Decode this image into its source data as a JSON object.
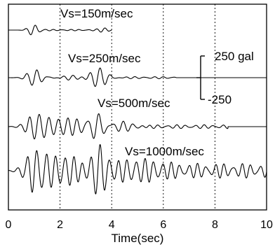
{
  "chart_data": {
    "type": "line",
    "title": "",
    "xlabel": "Time(sec)",
    "ylabel": "",
    "xlim": [
      0,
      10
    ],
    "x_ticks": [
      "0",
      "2",
      "4",
      "6",
      "8",
      "10"
    ],
    "grid": "vertical dashed lines at 2, 4, 6, 8 sec",
    "scale_bar": {
      "top_label": "250 gal",
      "bottom_label": "-250",
      "value_gal": 250
    },
    "series": [
      {
        "name": "Vs=150m/sec",
        "duration": 4.0,
        "bursts": [
          {
            "t": 0.95,
            "amp": 60,
            "freq": 2.6,
            "width": 0.25
          },
          {
            "t": 3.7,
            "amp": 20,
            "freq": 3.0,
            "width": 0.25
          }
        ],
        "background": {
          "amp": 8,
          "freq": 3.0,
          "start": 0.8,
          "end": 3.9
        }
      },
      {
        "name": "Vs=250m/sec",
        "duration": 10.0,
        "bursts": [
          {
            "t": 1.0,
            "amp": 95,
            "freq": 2.5,
            "width": 0.35
          },
          {
            "t": 3.5,
            "amp": 115,
            "freq": 2.5,
            "width": 0.45
          },
          {
            "t": 2.5,
            "amp": 35,
            "freq": 2.6,
            "width": 0.6
          }
        ],
        "background": {
          "amp": 12,
          "freq": 2.7,
          "start": 0.7,
          "end": 6.5
        }
      },
      {
        "name": "Vs=500m/sec",
        "duration": 10.0,
        "bursts": [
          {
            "t": 1.1,
            "amp": 130,
            "freq": 2.7,
            "width": 0.5
          },
          {
            "t": 3.45,
            "amp": 180,
            "freq": 2.5,
            "width": 0.35
          },
          {
            "t": 2.3,
            "amp": 95,
            "freq": 2.8,
            "width": 0.8
          },
          {
            "t": 4.5,
            "amp": 55,
            "freq": 2.6,
            "width": 0.6
          }
        ],
        "background": {
          "amp": 22,
          "freq": 2.8,
          "start": 0.6,
          "end": 8.5
        }
      },
      {
        "name": "Vs=1000m/sec",
        "duration": 10.0,
        "bursts": [
          {
            "t": 1.0,
            "amp": 170,
            "freq": 2.7,
            "width": 0.5
          },
          {
            "t": 3.5,
            "amp": 210,
            "freq": 2.6,
            "width": 0.4
          },
          {
            "t": 2.2,
            "amp": 120,
            "freq": 2.8,
            "width": 0.9
          },
          {
            "t": 5.0,
            "amp": 80,
            "freq": 2.9,
            "width": 1.2
          }
        ],
        "background": {
          "amp": 85,
          "freq": 2.9,
          "start": 0.6,
          "end": 10.0
        }
      }
    ]
  }
}
